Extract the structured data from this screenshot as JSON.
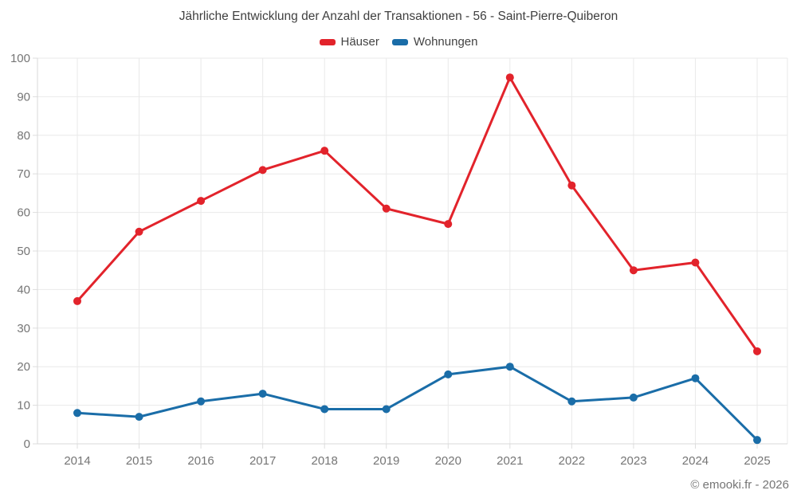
{
  "page": {
    "title": "Jährliche Entwicklung der Anzahl der Transaktionen - 56 - Saint-Pierre-Quiberon",
    "footer": "© emooki.fr - 2026"
  },
  "colors": {
    "grid": "#e9e9e9",
    "axis": "#d9d9d9",
    "tick": "#dddddd",
    "tick_label": "#757575",
    "title_text": "#3f3f3f",
    "footer_text": "#757575"
  },
  "chart_data": {
    "type": "line",
    "title": "Jährliche Entwicklung der Anzahl der Transaktionen - 56 - Saint-Pierre-Quiberon",
    "categories": [
      "2014",
      "2015",
      "2016",
      "2017",
      "2018",
      "2019",
      "2020",
      "2021",
      "2022",
      "2023",
      "2024",
      "2025"
    ],
    "series": [
      {
        "name": "Häuser",
        "color": "#e2232b",
        "values": [
          37,
          55,
          63,
          71,
          76,
          61,
          57,
          95,
          67,
          45,
          47,
          24
        ]
      },
      {
        "name": "Wohnungen",
        "color": "#1a6da8",
        "values": [
          8,
          7,
          11,
          13,
          9,
          9,
          18,
          20,
          11,
          12,
          17,
          1
        ]
      }
    ],
    "ylim": [
      0,
      100
    ],
    "y_tick_step": 10,
    "xlabel": "",
    "ylabel": "",
    "grid": true,
    "legend_position": "top"
  }
}
